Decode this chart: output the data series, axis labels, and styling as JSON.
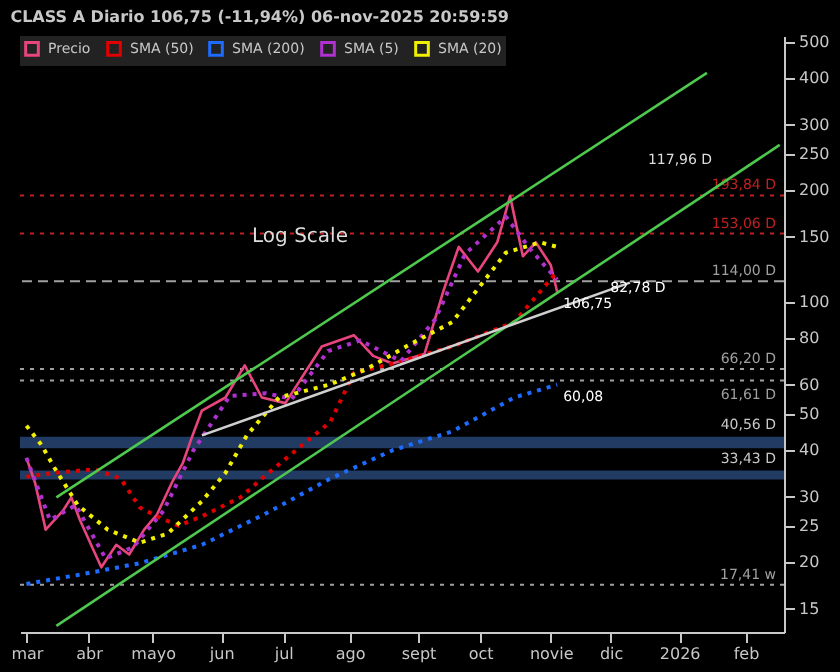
{
  "chart_data": {
    "type": "line",
    "title": "CLASS A Diario 106,75 (-11,94%) 06-nov-2025 20:59:59",
    "log": "y",
    "grid": false,
    "legend": "top left",
    "ylim": [
      13,
      520
    ],
    "yticks": [
      15,
      20,
      25,
      30,
      40,
      50,
      60,
      80,
      100,
      150,
      200,
      250,
      300,
      400,
      500
    ],
    "xlim": [
      "2025-02-28",
      "2026-02-20"
    ],
    "xticks": [
      {
        "value": "2025-03-03",
        "label": "mar"
      },
      {
        "value": "2025-04-01",
        "label": "abr"
      },
      {
        "value": "2025-05-01",
        "label": "mayo"
      },
      {
        "value": "2025-06-02",
        "label": "jun"
      },
      {
        "value": "2025-07-01",
        "label": "jul"
      },
      {
        "value": "2025-08-01",
        "label": "ago"
      },
      {
        "value": "2025-09-02",
        "label": "sept"
      },
      {
        "value": "2025-10-01",
        "label": "oct"
      },
      {
        "value": "2025-11-03",
        "label": "novie"
      },
      {
        "value": "2025-12-01",
        "label": "dic"
      },
      {
        "value": "2026-01-02",
        "label": "2026"
      },
      {
        "value": "2026-02-02",
        "label": "feb"
      }
    ],
    "series": [
      {
        "name": "Precio",
        "color": "#e8457f",
        "line_style": "solid",
        "x": [
          "2025-03-03",
          "2025-03-07",
          "2025-03-12",
          "2025-03-20",
          "2025-03-24",
          "2025-03-28",
          "2025-04-03",
          "2025-04-07",
          "2025-04-14",
          "2025-04-20",
          "2025-04-27",
          "2025-05-03",
          "2025-05-10",
          "2025-05-15",
          "2025-05-19",
          "2025-05-24",
          "2025-06-04",
          "2025-06-13",
          "2025-06-21",
          "2025-07-02",
          "2025-07-19",
          "2025-08-03",
          "2025-08-12",
          "2025-08-21",
          "2025-09-05",
          "2025-09-14",
          "2025-09-21",
          "2025-09-30",
          "2025-10-09",
          "2025-10-15",
          "2025-10-21",
          "2025-10-27",
          "2025-11-03",
          "2025-11-06"
        ],
        "values": [
          38.2,
          32.8,
          24.5,
          27.5,
          29.9,
          26.0,
          21.8,
          19.4,
          22.3,
          21.0,
          24.5,
          26.9,
          32.8,
          36.9,
          42.9,
          51.2,
          55.5,
          67.7,
          55.5,
          53.6,
          76.1,
          81.6,
          71.8,
          68.5,
          72.6,
          108,
          141,
          121,
          145,
          193,
          133,
          145,
          126,
          106.75
        ]
      },
      {
        "name": "SMA (50)",
        "color": "#e00000",
        "line_style": "dotted",
        "x": [
          "2025-03-03",
          "2025-03-16",
          "2025-04-04",
          "2025-04-16",
          "2025-04-25",
          "2025-05-03",
          "2025-05-13",
          "2025-05-24",
          "2025-06-11",
          "2025-06-22",
          "2025-07-08",
          "2025-07-23",
          "2025-08-03",
          "2025-08-21",
          "2025-09-18",
          "2025-10-17",
          "2025-11-06"
        ],
        "values": [
          34.0,
          34.8,
          35.6,
          33.6,
          28.1,
          26.6,
          25.1,
          26.6,
          29.9,
          34.0,
          40.5,
          47.7,
          64.6,
          68.5,
          76.1,
          88.5,
          121
        ]
      },
      {
        "name": "SMA (200)",
        "color": "#1e6bff",
        "line_style": "dotted",
        "x": [
          "2025-03-03",
          "2025-03-27",
          "2025-04-25",
          "2025-05-24",
          "2025-06-22",
          "2025-07-23",
          "2025-08-21",
          "2025-09-18",
          "2025-10-17",
          "2025-11-06"
        ],
        "values": [
          17.5,
          18.5,
          19.9,
          22.3,
          26.9,
          33.6,
          40.0,
          45.0,
          55.5,
          60.08
        ]
      },
      {
        "name": "SMA (5)",
        "color": "#b030d0",
        "line_style": "dotted",
        "x": [
          "2025-03-03",
          "2025-03-14",
          "2025-03-26",
          "2025-04-09",
          "2025-04-22",
          "2025-05-06",
          "2025-05-20",
          "2025-06-06",
          "2025-06-23",
          "2025-07-05",
          "2025-07-22",
          "2025-08-06",
          "2025-08-25",
          "2025-09-10",
          "2025-09-24",
          "2025-10-13",
          "2025-10-24",
          "2025-11-06"
        ],
        "values": [
          38.2,
          26.0,
          28.5,
          20.5,
          22.0,
          27.5,
          40.0,
          56.0,
          57.0,
          55.0,
          74.0,
          79.0,
          69.5,
          90.0,
          135,
          170,
          140,
          115
        ]
      },
      {
        "name": "SMA (20)",
        "color": "#f0f000",
        "line_style": "dotted",
        "x": [
          "2025-03-03",
          "2025-03-10",
          "2025-03-16",
          "2025-03-27",
          "2025-04-10",
          "2025-04-25",
          "2025-05-08",
          "2025-05-24",
          "2025-06-04",
          "2025-06-14",
          "2025-06-29",
          "2025-07-23",
          "2025-08-09",
          "2025-08-29",
          "2025-09-18",
          "2025-10-13",
          "2025-10-29",
          "2025-11-06"
        ],
        "values": [
          46.6,
          41.4,
          36.0,
          28.5,
          24.5,
          22.6,
          23.9,
          29.2,
          34.8,
          43.9,
          55.5,
          60.2,
          66.2,
          77,
          88.5,
          136,
          145,
          141
        ]
      },
      {
        "color": "#4ec94e",
        "line_style": "solid",
        "x": [
          "2025-03-17",
          "2026-01-15"
        ],
        "values": [
          29.9,
          414
        ]
      },
      {
        "color": "#4ec94e",
        "line_style": "solid",
        "x": [
          "2025-03-17",
          "2026-02-18"
        ],
        "values": [
          13.5,
          265
        ]
      },
      {
        "color": "#d0d0d0",
        "line_style": "solid",
        "x": [
          "2025-05-24",
          "2025-12-10"
        ],
        "values": [
          43.9,
          113
        ]
      }
    ],
    "ref_lines": [
      {
        "axis": "y",
        "value": 193.84,
        "label": "193,84 D",
        "color": "#c02020",
        "line_style": "dotted"
      },
      {
        "axis": "y",
        "value": 153.06,
        "label": "153,06 D",
        "color": "#c02020",
        "line_style": "dotted"
      },
      {
        "axis": "y",
        "value": 114,
        "label": "114,00 D",
        "color": "#a0a0a0",
        "line_style": "dashed"
      },
      {
        "axis": "y",
        "value": 66.2,
        "label": "66,20 D",
        "color": "#a0a0a0",
        "line_style": "dotted"
      },
      {
        "axis": "y",
        "value": 61.61,
        "label": "61,61 D",
        "color": "#a0a0a0",
        "line_style": "dotted"
      },
      {
        "axis": "y",
        "value": 17.41,
        "label": "17,41 w",
        "color": "#a0a0a0",
        "line_style": "dotted"
      }
    ],
    "bands": [
      {
        "axis": "y",
        "from": 40.56,
        "to": 43.5,
        "label": "40,56 D",
        "color": "#2a4a7a"
      },
      {
        "axis": "y",
        "from": 33.43,
        "to": 35.3,
        "label": "33,43 D",
        "color": "#2a4a7a"
      }
    ],
    "annotations": [
      "Log Scale",
      "117,96 D",
      {
        "text": "82,78 D",
        "x": "2025-11-28",
        "y": 118
      },
      {
        "text": "106,75",
        "x": "2025-11-06",
        "y": 106.75
      },
      {
        "text": "60,08",
        "x": "2025-11-06",
        "y": 60.08
      }
    ]
  }
}
